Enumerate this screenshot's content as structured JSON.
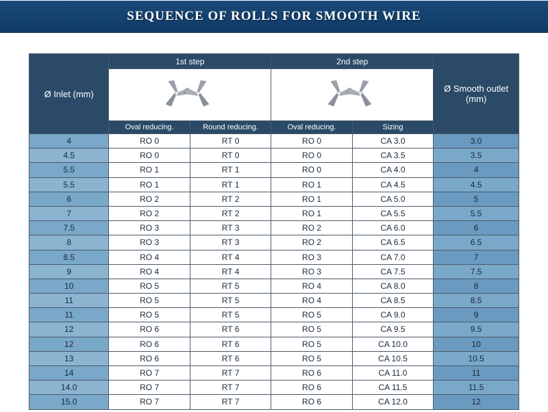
{
  "title": "SEQUENCE OF ROLLS FOR SMOOTH WIRE",
  "colors": {
    "header_bg": "#2a4a68",
    "header_text": "#ffffff",
    "inlet_cell_bg": "#7aa8c8",
    "outlet_cell_bg": "#6a9ac0",
    "border": "#4a5a6a",
    "row_bg": "#ffffff",
    "title_bar_bg": "#1a4a7a",
    "roll_fill": "#9aa1a8",
    "roll_stroke": "#6a7178"
  },
  "headers": {
    "inlet": "Ø Inlet (mm)",
    "step1": "1st step",
    "step2": "2nd step",
    "outlet": "Ø Smooth outlet (mm)",
    "sub": {
      "s1a": "Oval reducing.",
      "s1b": "Round reducing.",
      "s2a": "Oval reducing.",
      "s2b": "Sizing"
    }
  },
  "rows": [
    {
      "inlet": "4",
      "s1a": "RO 0",
      "s1b": "RT 0",
      "s2a": "RO 0",
      "s2b": "CA 3.0",
      "out": "3.0"
    },
    {
      "inlet": "4.5",
      "s1a": "RO 0",
      "s1b": "RT 0",
      "s2a": "RO 0",
      "s2b": "CA 3.5",
      "out": "3.5"
    },
    {
      "inlet": "5.5",
      "s1a": "RO 1",
      "s1b": "RT 1",
      "s2a": "RO 0",
      "s2b": "CA 4.0",
      "out": "4"
    },
    {
      "inlet": "5.5",
      "s1a": "RO 1",
      "s1b": "RT 1",
      "s2a": "RO 1",
      "s2b": "CA 4.5",
      "out": "4.5"
    },
    {
      "inlet": "6",
      "s1a": "RO 2",
      "s1b": "RT 2",
      "s2a": "RO 1",
      "s2b": "CA 5.0",
      "out": "5"
    },
    {
      "inlet": "7",
      "s1a": "RO 2",
      "s1b": "RT 2",
      "s2a": "RO 1",
      "s2b": "CA 5.5",
      "out": "5.5"
    },
    {
      "inlet": "7.5",
      "s1a": "RO 3",
      "s1b": "RT 3",
      "s2a": "RO 2",
      "s2b": "CA 6.0",
      "out": "6"
    },
    {
      "inlet": "8",
      "s1a": "RO 3",
      "s1b": "RT 3",
      "s2a": "RO 2",
      "s2b": "CA 6.5",
      "out": "6.5"
    },
    {
      "inlet": "8.5",
      "s1a": "RO 4",
      "s1b": "RT 4",
      "s2a": "RO 3",
      "s2b": "CA 7.0",
      "out": "7"
    },
    {
      "inlet": "9",
      "s1a": "RO 4",
      "s1b": "RT 4",
      "s2a": "RO 3",
      "s2b": "CA 7.5",
      "out": "7.5"
    },
    {
      "inlet": "10",
      "s1a": "RO 5",
      "s1b": "RT 5",
      "s2a": "RO 4",
      "s2b": "CA 8.0",
      "out": "8"
    },
    {
      "inlet": "11",
      "s1a": "RO 5",
      "s1b": "RT 5",
      "s2a": "RO 4",
      "s2b": "CA 8.5",
      "out": "8.5"
    },
    {
      "inlet": "11",
      "s1a": "RO 5",
      "s1b": "RT 5",
      "s2a": "RO 5",
      "s2b": "CA 9.0",
      "out": "9"
    },
    {
      "inlet": "12",
      "s1a": "RO 6",
      "s1b": "RT 6",
      "s2a": "RO 5",
      "s2b": "CA 9.5",
      "out": "9.5"
    },
    {
      "inlet": "12",
      "s1a": "RO 6",
      "s1b": "RT 6",
      "s2a": "RO 5",
      "s2b": "CA 10.0",
      "out": "10"
    },
    {
      "inlet": "13",
      "s1a": "RO 6",
      "s1b": "RT 6",
      "s2a": "RO 5",
      "s2b": "CA 10.5",
      "out": "10.5"
    },
    {
      "inlet": "14",
      "s1a": "RO 7",
      "s1b": "RT 7",
      "s2a": "RO 6",
      "s2b": "CA 11.0",
      "out": "11"
    },
    {
      "inlet": "14.0",
      "s1a": "RO 7",
      "s1b": "RT 7",
      "s2a": "RO 6",
      "s2b": "CA 11.5",
      "out": "11.5"
    },
    {
      "inlet": "15.0",
      "s1a": "RO 7",
      "s1b": "RT 7",
      "s2a": "RO 6",
      "s2b": "CA 12.0",
      "out": "12"
    }
  ]
}
